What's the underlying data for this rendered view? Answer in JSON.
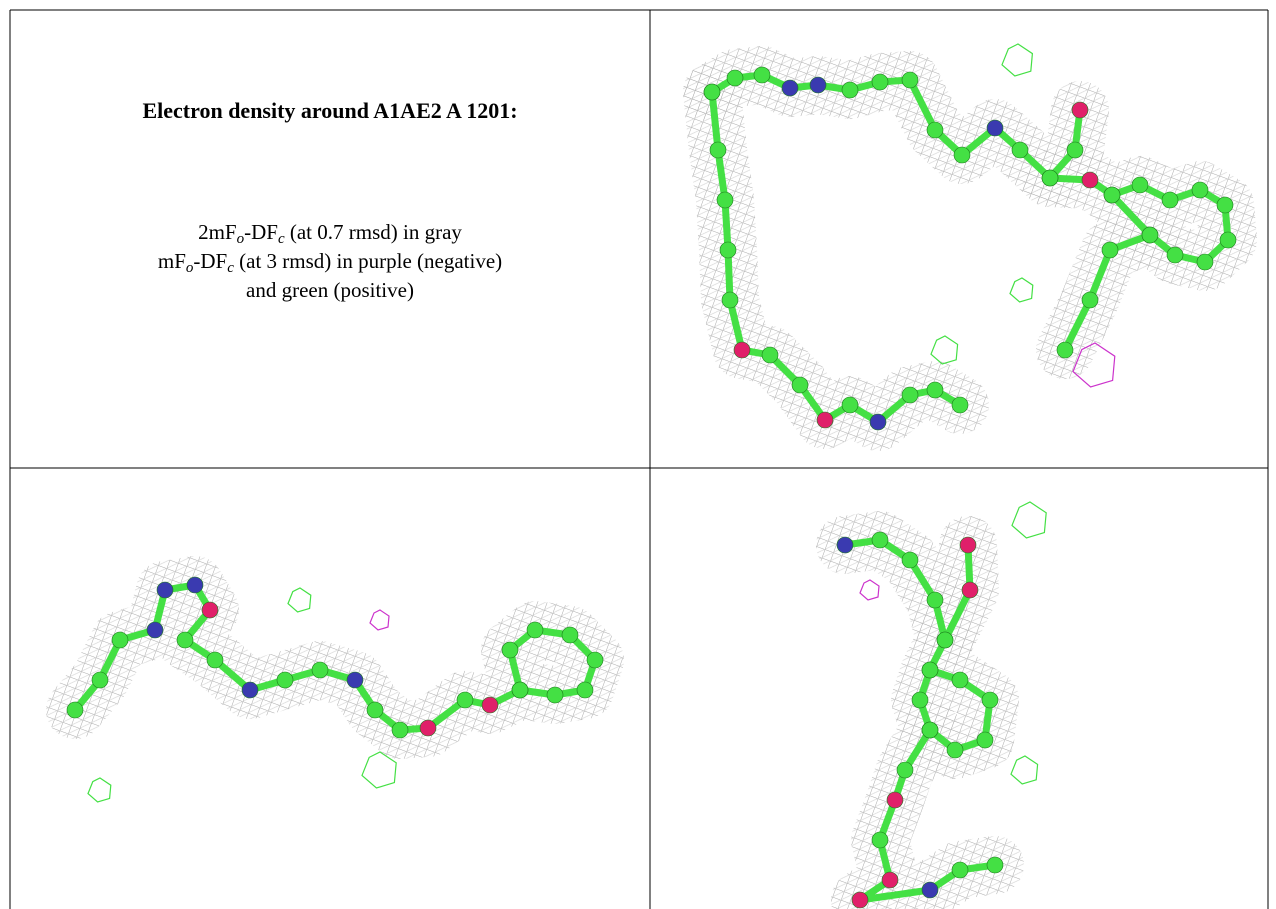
{
  "heading": "Electron density around A1AE2 A 1201:",
  "legend": [
    [
      "2mF",
      "o",
      "-DF",
      "c",
      " (at 0.7 rmsd) in gray"
    ],
    [
      "mF",
      "o",
      "-DF",
      "c",
      " (at 3 rmsd) in purple (negative)"
    ],
    [
      "and green (positive)"
    ]
  ]
}
